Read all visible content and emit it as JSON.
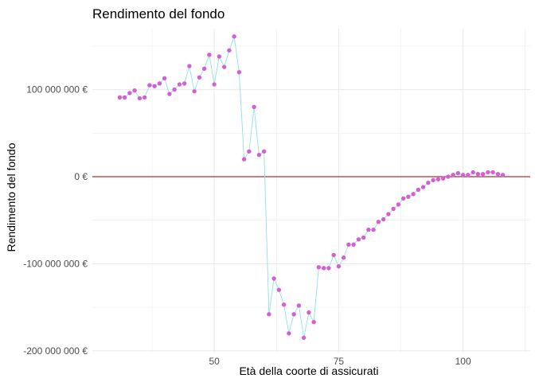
{
  "chart_data": {
    "type": "line",
    "title": "Rendimento del fondo",
    "xlabel": "Età della coorte di assicurati",
    "ylabel": "Rendimento del fondo",
    "xlim": [
      25.5,
      113.5
    ],
    "ylim": [
      -202000000,
      170000000
    ],
    "x_ticks": [
      50,
      75,
      100
    ],
    "x_tick_labels": [
      "50",
      "75",
      "100"
    ],
    "y_ticks": [
      -200000000,
      -100000000,
      0,
      100000000
    ],
    "y_tick_labels": [
      "-200 000 000 €",
      "-100 000 000 €",
      "0 €",
      "100 000 000 €"
    ],
    "grid": true,
    "reference_line": {
      "y": 0
    },
    "colors": {
      "line": "#8ee3e3",
      "points": "#d45fd4",
      "reference_line": "#b03030",
      "grid": "#ebebeb"
    },
    "series": [
      {
        "x": [
          31,
          32,
          33,
          34,
          35,
          36,
          37,
          38,
          39,
          40,
          41,
          42,
          43,
          44,
          45,
          46,
          47,
          48,
          49,
          50,
          51,
          52,
          53,
          54,
          55,
          56,
          57,
          58,
          59,
          60,
          61,
          62,
          63,
          64,
          65,
          66,
          67,
          68,
          69,
          70,
          71,
          72,
          73,
          74,
          75,
          76,
          77,
          78,
          79,
          80,
          81,
          82,
          83,
          84,
          85,
          86,
          87,
          88,
          89,
          90,
          91,
          92,
          93,
          94,
          95,
          96,
          97,
          98,
          99,
          100,
          101,
          102,
          103,
          104,
          105,
          106,
          107,
          108
        ],
        "values": [
          91000000,
          91000000,
          96000000,
          99000000,
          90000000,
          91000000,
          105000000,
          104000000,
          107000000,
          113000000,
          95000000,
          100000000,
          106000000,
          107000000,
          127000000,
          98000000,
          114000000,
          124000000,
          140000000,
          106000000,
          138000000,
          126000000,
          145000000,
          161000000,
          120000000,
          20000000,
          29000000,
          80000000,
          25000000,
          29000000,
          -158000000,
          -117000000,
          -130000000,
          -147000000,
          -180000000,
          -158000000,
          -148000000,
          -185000000,
          -156000000,
          -167000000,
          -104000000,
          -105000000,
          -105000000,
          -90000000,
          -103000000,
          -93000000,
          -78000000,
          -78000000,
          -72000000,
          -70000000,
          -61000000,
          -61000000,
          -52000000,
          -49000000,
          -43000000,
          -37000000,
          -32000000,
          -25000000,
          -23000000,
          -20000000,
          -15000000,
          -12000000,
          -7000000,
          -4000000,
          -3000000,
          -2000000,
          0,
          2000000,
          4000000,
          2000000,
          2000000,
          5000000,
          3000000,
          3000000,
          5000000,
          5000000,
          3000000,
          2000000
        ]
      }
    ]
  }
}
